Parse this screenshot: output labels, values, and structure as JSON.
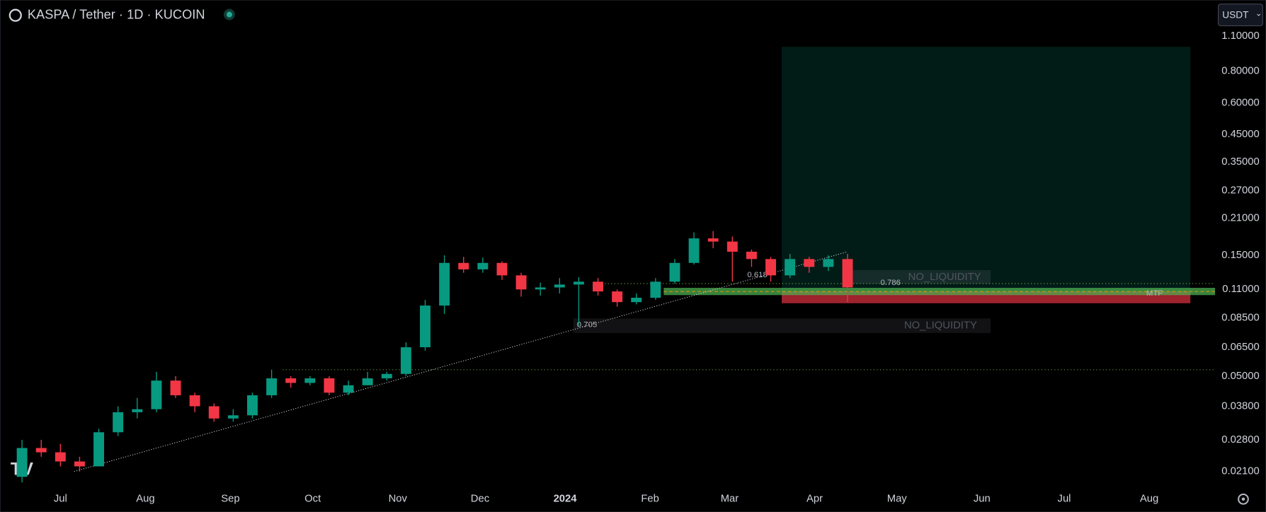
{
  "chart_data": {
    "type": "candlestick",
    "title": "KASPA / Tether · 1D · KUCOIN",
    "currency": "USDT",
    "log_scale": true,
    "grid": false,
    "colors": {
      "up": "#089981",
      "down": "#f23645"
    },
    "x": [
      -14,
      -7,
      0,
      7,
      14,
      21,
      28,
      35,
      42,
      49,
      56,
      63,
      70,
      77,
      84,
      91,
      98,
      105,
      112,
      119,
      126,
      133,
      140,
      147,
      154,
      161,
      168,
      175,
      182,
      189,
      196,
      203,
      210,
      217,
      224,
      231,
      238,
      245,
      252,
      259,
      266,
      273,
      280,
      287
    ],
    "open": [
      0.02,
      0.026,
      0.025,
      0.023,
      0.022,
      0.03,
      0.036,
      0.037,
      0.048,
      0.042,
      0.038,
      0.034,
      0.035,
      0.042,
      0.049,
      0.047,
      0.049,
      0.043,
      0.046,
      0.049,
      0.051,
      0.065,
      0.095,
      0.14,
      0.132,
      0.14,
      0.125,
      0.11,
      0.112,
      0.115,
      0.118,
      0.108,
      0.098,
      0.102,
      0.118,
      0.14,
      0.175,
      0.17,
      0.155,
      0.145,
      0.125,
      0.145,
      0.135,
      0.145
    ],
    "high": [
      0.028,
      0.028,
      0.027,
      0.024,
      0.031,
      0.038,
      0.041,
      0.052,
      0.05,
      0.043,
      0.039,
      0.037,
      0.043,
      0.053,
      0.05,
      0.05,
      0.05,
      0.048,
      0.052,
      0.052,
      0.068,
      0.1,
      0.15,
      0.148,
      0.147,
      0.142,
      0.128,
      0.117,
      0.122,
      0.123,
      0.122,
      0.11,
      0.106,
      0.122,
      0.145,
      0.185,
      0.187,
      0.178,
      0.158,
      0.148,
      0.152,
      0.148,
      0.15,
      0.152
    ],
    "low": [
      0.019,
      0.024,
      0.022,
      0.021,
      0.022,
      0.029,
      0.034,
      0.036,
      0.041,
      0.036,
      0.033,
      0.033,
      0.034,
      0.041,
      0.045,
      0.046,
      0.042,
      0.042,
      0.046,
      0.048,
      0.05,
      0.063,
      0.088,
      0.128,
      0.128,
      0.12,
      0.103,
      0.104,
      0.106,
      0.079,
      0.104,
      0.094,
      0.096,
      0.1,
      0.116,
      0.138,
      0.16,
      0.118,
      0.135,
      0.118,
      0.122,
      0.128,
      0.13,
      0.098
    ],
    "close": [
      0.026,
      0.025,
      0.023,
      0.022,
      0.03,
      0.036,
      0.037,
      0.048,
      0.042,
      0.038,
      0.034,
      0.035,
      0.042,
      0.049,
      0.047,
      0.049,
      0.043,
      0.046,
      0.049,
      0.051,
      0.065,
      0.095,
      0.14,
      0.132,
      0.14,
      0.125,
      0.11,
      0.112,
      0.115,
      0.118,
      0.108,
      0.098,
      0.102,
      0.118,
      0.14,
      0.175,
      0.17,
      0.155,
      0.145,
      0.125,
      0.145,
      0.135,
      0.145,
      0.112
    ],
    "xlim": [
      -22,
      421
    ],
    "xticks": [
      {
        "value": 0,
        "label": "Jul"
      },
      {
        "value": 31,
        "label": "Aug"
      },
      {
        "value": 62,
        "label": "Sep"
      },
      {
        "value": 92,
        "label": "Oct"
      },
      {
        "value": 123,
        "label": "Nov"
      },
      {
        "value": 153,
        "label": "Dec"
      },
      {
        "value": 184,
        "label": "2024"
      },
      {
        "value": 215,
        "label": "Feb"
      },
      {
        "value": 244,
        "label": "Mar"
      },
      {
        "value": 275,
        "label": "Apr"
      },
      {
        "value": 305,
        "label": "May"
      },
      {
        "value": 336,
        "label": "Jun"
      },
      {
        "value": 366,
        "label": "Jul"
      },
      {
        "value": 397,
        "label": "Aug"
      }
    ],
    "ylim": [
      0.0181,
      1.53
    ],
    "yticks": [
      {
        "value": 1.1,
        "label": "1.10000"
      },
      {
        "value": 0.8,
        "label": "0.80000"
      },
      {
        "value": 0.6,
        "label": "0.60000"
      },
      {
        "value": 0.45,
        "label": "0.45000"
      },
      {
        "value": 0.35,
        "label": "0.35000"
      },
      {
        "value": 0.27,
        "label": "0.27000"
      },
      {
        "value": 0.21,
        "label": "0.21000"
      },
      {
        "value": 0.15,
        "label": "0.15000"
      },
      {
        "value": 0.11,
        "label": "0.11000"
      },
      {
        "value": 0.085,
        "label": "0.08500"
      },
      {
        "value": 0.065,
        "label": "0.06500"
      },
      {
        "value": 0.05,
        "label": "0.05000"
      },
      {
        "value": 0.038,
        "label": "0.03800"
      },
      {
        "value": 0.028,
        "label": "0.02800"
      },
      {
        "value": 0.021,
        "label": "0.02100"
      }
    ],
    "trendline": {
      "x": [
        5,
        287
      ],
      "y": [
        0.021,
        0.155
      ]
    },
    "levels": [
      0.116,
      0.053
    ],
    "position": {
      "x": [
        263,
        412
      ],
      "target": 1.0,
      "entry": 0.108,
      "stop": 0.097
    },
    "annotations": [
      "NO_LIQUIDITY",
      "NO_LIQUIDITY",
      0.786,
      0.618,
      0.705,
      "MTF"
    ]
  }
}
